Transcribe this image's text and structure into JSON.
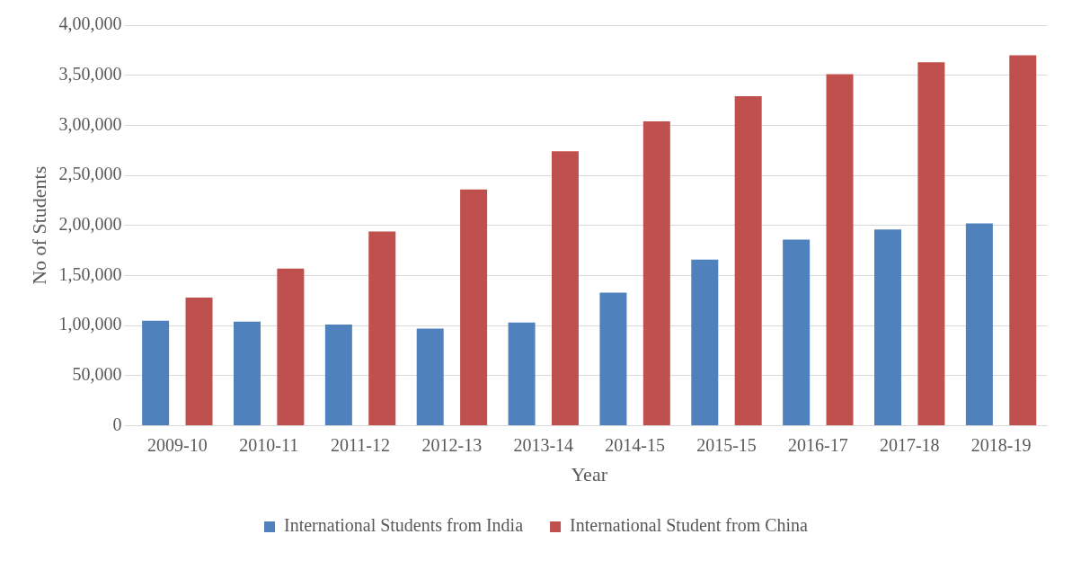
{
  "chart_data": {
    "type": "bar",
    "xlabel": "Year",
    "ylabel": "No of Students",
    "categories": [
      "2009-10",
      "2010-11",
      "2011-12",
      "2012-13",
      "2013-14",
      "2014-15",
      "2015-15",
      "2016-17",
      "2017-18",
      "2018-19"
    ],
    "series": [
      {
        "name": "International Students from India",
        "color": "#4f81bd",
        "values": [
          105000,
          104000,
          101000,
          97000,
          103000,
          133000,
          166000,
          186000,
          196000,
          202000
        ]
      },
      {
        "name": "International Student from China",
        "color": "#c0504d",
        "values": [
          128000,
          157000,
          194000,
          236000,
          274000,
          304000,
          329000,
          351000,
          363000,
          370000
        ]
      }
    ],
    "ylim": [
      0,
      400000
    ],
    "yticks": [
      0,
      {
        "value": 50000,
        "label": "50,000"
      },
      {
        "value": 100000,
        "label": "1,00,000"
      },
      {
        "value": 150000,
        "label": "1,50,000"
      },
      {
        "value": 200000,
        "label": "2,00,000"
      },
      {
        "value": 250000,
        "label": "2,50,000"
      },
      {
        "value": 300000,
        "label": "3,00,000"
      },
      {
        "value": 350000,
        "label": "3,50,000"
      },
      {
        "value": 400000,
        "label": "4,00,000"
      }
    ],
    "grid": "y",
    "legend": "bottom"
  }
}
